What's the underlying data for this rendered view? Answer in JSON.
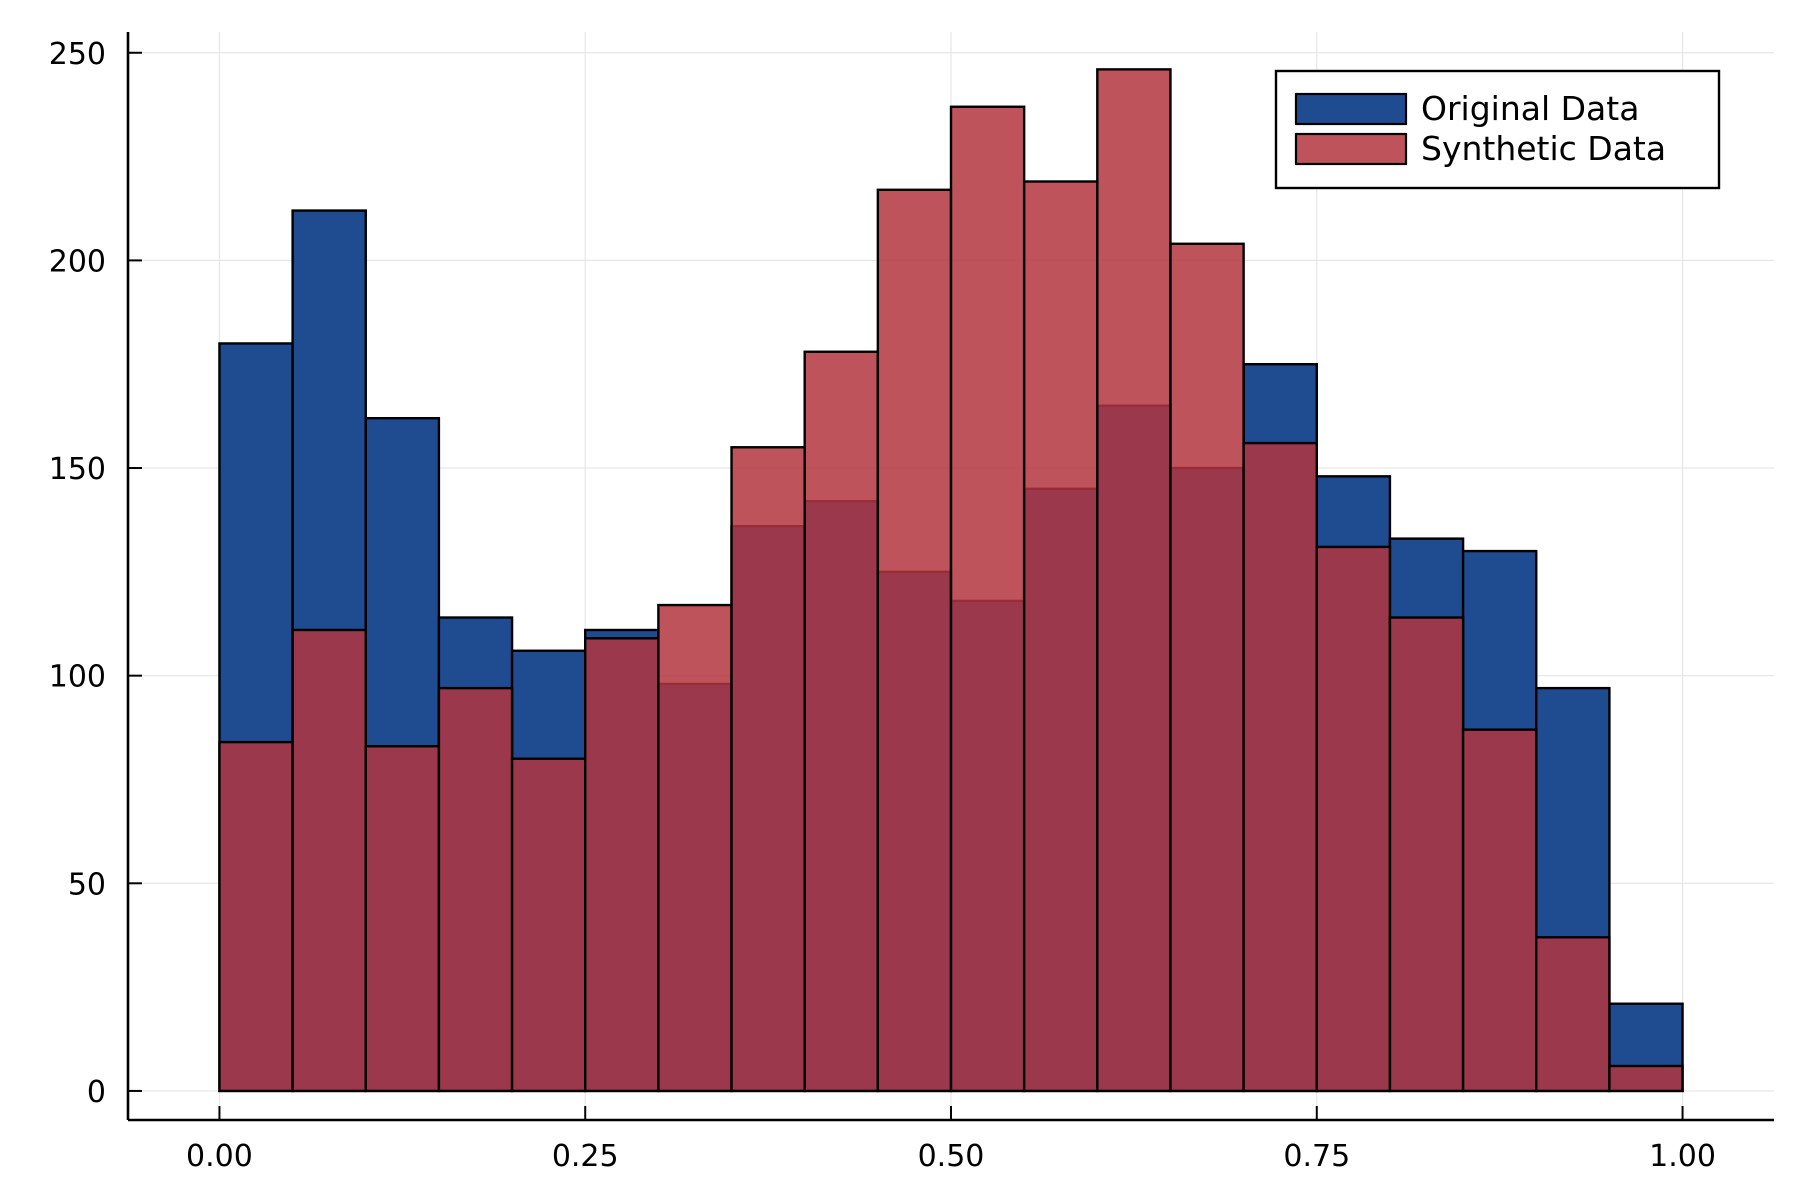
{
  "chart_data": {
    "type": "bar",
    "subtype": "overlaid-histogram",
    "title": "",
    "xlabel": "",
    "ylabel": "",
    "bin_width": 0.05,
    "bin_edges": [
      0.0,
      0.05,
      0.1,
      0.15,
      0.2,
      0.25,
      0.3,
      0.35,
      0.4,
      0.45,
      0.5,
      0.55,
      0.6,
      0.65,
      0.7,
      0.75,
      0.8,
      0.85,
      0.9,
      0.95,
      1.0
    ],
    "xlim": [
      -0.0625,
      1.0625
    ],
    "ylim": [
      -7,
      255
    ],
    "x_ticks": [
      "0.00",
      "0.25",
      "0.50",
      "0.75",
      "1.00"
    ],
    "y_ticks": [
      "0",
      "50",
      "100",
      "150",
      "200",
      "250"
    ],
    "grid": true,
    "legend_position": "top-right",
    "series": [
      {
        "name": "Original Data",
        "color": "#1f4b91",
        "values": [
          180,
          212,
          162,
          114,
          106,
          111,
          98,
          136,
          142,
          125,
          118,
          145,
          165,
          150,
          175,
          148,
          133,
          130,
          97,
          21
        ]
      },
      {
        "name": "Synthetic Data",
        "color": "#b33540",
        "values": [
          84,
          111,
          83,
          97,
          80,
          109,
          117,
          155,
          178,
          217,
          237,
          219,
          246,
          204,
          156,
          131,
          114,
          87,
          37,
          6
        ]
      }
    ]
  }
}
